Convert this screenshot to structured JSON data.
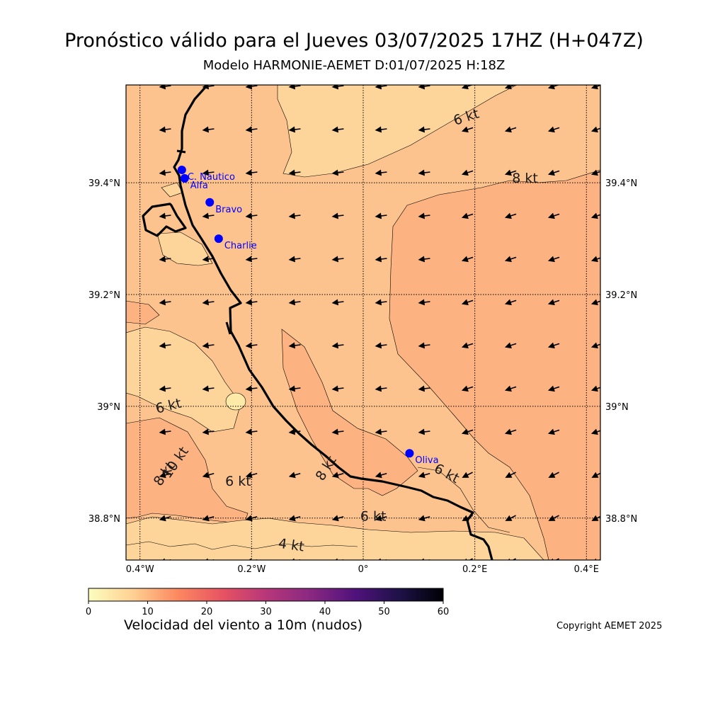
{
  "header": {
    "title": "Pronóstico válido para el Jueves 03/07/2025 17HZ (H+047Z)",
    "subtitle": "Modelo HARMONIE-AEMET D:01/07/2025 H:18Z"
  },
  "map": {
    "lon_range": [
      -0.425,
      0.425
    ],
    "lat_range": [
      38.725,
      39.575
    ],
    "lon_ticks": [
      {
        "value": -0.4,
        "label": "0.4°W"
      },
      {
        "value": -0.2,
        "label": "0.2°W"
      },
      {
        "value": 0.0,
        "label": "0°"
      },
      {
        "value": 0.2,
        "label": "0.2°E"
      },
      {
        "value": 0.4,
        "label": "0.4°E"
      }
    ],
    "lat_ticks": [
      {
        "value": 38.8,
        "label": "38.8°N"
      },
      {
        "value": 39.0,
        "label": "39°N"
      },
      {
        "value": 39.2,
        "label": "39.2°N"
      },
      {
        "value": 39.4,
        "label": "39.4°N"
      }
    ],
    "stations": [
      {
        "name": "C. Nautico",
        "lon": -0.325,
        "lat": 39.423
      },
      {
        "name": "Alfa",
        "lon": -0.32,
        "lat": 39.408
      },
      {
        "name": "Bravo",
        "lon": -0.275,
        "lat": 39.365
      },
      {
        "name": "Charlie",
        "lon": -0.259,
        "lat": 39.3
      },
      {
        "name": "Oliva",
        "lon": 0.083,
        "lat": 38.916
      }
    ],
    "contour_labels": [
      {
        "text": "6 kt",
        "lon": 0.187,
        "lat": 39.51
      },
      {
        "text": "8 kt",
        "lon": 0.29,
        "lat": 39.4
      },
      {
        "text": "6 kt",
        "lon": -0.347,
        "lat": 38.993
      },
      {
        "text": "10 kt",
        "lon": -0.33,
        "lat": 38.895
      },
      {
        "text": "8 kt",
        "lon": -0.35,
        "lat": 38.875
      },
      {
        "text": "6 kt",
        "lon": -0.224,
        "lat": 38.858
      },
      {
        "text": "8 kt",
        "lon": -0.06,
        "lat": 38.885
      },
      {
        "text": "6 kt",
        "lon": 0.146,
        "lat": 38.873
      },
      {
        "text": "6 kt",
        "lon": 0.018,
        "lat": 38.795
      },
      {
        "text": "4 kt",
        "lon": -0.13,
        "lat": 38.744
      }
    ],
    "wind_direction": "from-east-northeast",
    "colors": {
      "speed_4_6": "#fdd49a",
      "speed_6_8": "#fdc38e",
      "speed_8_10": "#fcb281",
      "speed_10_12": "#fb9c72",
      "coast": "#000000",
      "station": "#0000ff"
    }
  },
  "colorbar": {
    "min": 0,
    "max": 60,
    "ticks": [
      "0",
      "10",
      "20",
      "30",
      "40",
      "50",
      "60"
    ],
    "label": "Velocidad del viento a 10m (nudos)",
    "colormap": "magma_r"
  },
  "footer": {
    "copyright": "Copyright AEMET 2025"
  }
}
